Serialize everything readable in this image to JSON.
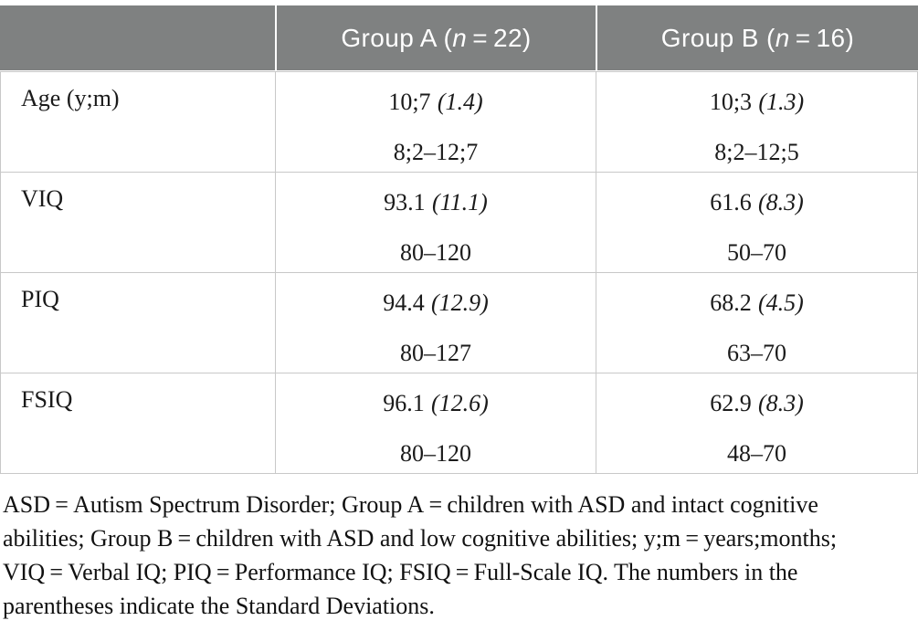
{
  "colors": {
    "header_background": "#7f8181",
    "header_text": "#ffffff",
    "border": "#c8c8c8",
    "body_text": "#1a1a1a"
  },
  "header": {
    "empty_label": "",
    "group_a": {
      "prefix": "Group A (",
      "n": "n",
      "suffix": " = 22)"
    },
    "group_b": {
      "prefix": "Group B (",
      "n": "n",
      "suffix": " = 16)"
    }
  },
  "rows": [
    {
      "label": "Age (y;m)",
      "a": {
        "mean": "10;7",
        "sd": "(1.4)",
        "range": "8;2–12;7"
      },
      "b": {
        "mean": "10;3",
        "sd": "(1.3)",
        "range": "8;2–12;5"
      }
    },
    {
      "label": "VIQ",
      "a": {
        "mean": "93.1",
        "sd": "(11.1)",
        "range": "80–120"
      },
      "b": {
        "mean": "61.6",
        "sd": "(8.3)",
        "range": "50–70"
      }
    },
    {
      "label": "PIQ",
      "a": {
        "mean": "94.4",
        "sd": "(12.9)",
        "range": "80–127"
      },
      "b": {
        "mean": "68.2",
        "sd": "(4.5)",
        "range": "63–70"
      }
    },
    {
      "label": "FSIQ",
      "a": {
        "mean": "96.1",
        "sd": "(12.6)",
        "range": "80–120"
      },
      "b": {
        "mean": "62.9",
        "sd": "(8.3)",
        "range": "48–70"
      }
    }
  ],
  "footnote": {
    "lines": [
      "ASD = Autism Spectrum Disorder; Group A = children with ASD and intact cognitive",
      "abilities; Group B = children with ASD and low cognitive abilities; y;m = years;months;",
      "VIQ = Verbal IQ; PIQ = Performance IQ; FSIQ = Full-Scale IQ. The numbers in the",
      "parentheses indicate the Standard Deviations."
    ]
  }
}
